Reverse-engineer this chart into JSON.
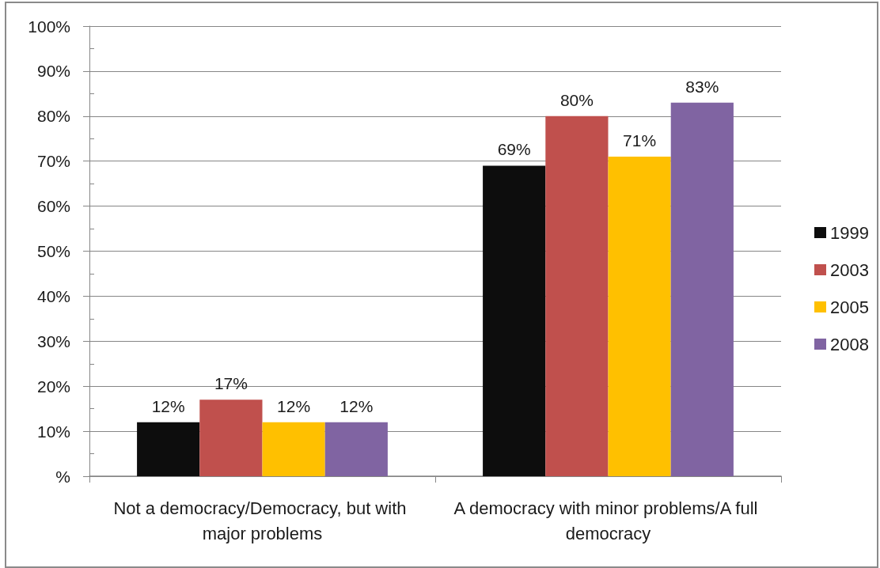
{
  "chart_data": {
    "type": "bar",
    "categories": [
      "Not a democracy/Democracy, but with major problems",
      "A democracy with minor problems/A full democracy"
    ],
    "series": [
      {
        "name": "1999",
        "color": "#0d0d0d",
        "values": [
          12,
          69
        ],
        "value_labels": [
          "12%",
          "69%"
        ]
      },
      {
        "name": "2003",
        "color": "#c0504d",
        "values": [
          17,
          80
        ],
        "value_labels": [
          "17%",
          "80%"
        ]
      },
      {
        "name": "2005",
        "color": "#ffc000",
        "values": [
          12,
          71
        ],
        "value_labels": [
          "12%",
          "71%"
        ]
      },
      {
        "name": "2008",
        "color": "#8064a2",
        "values": [
          12,
          83
        ],
        "value_labels": [
          "12%",
          "83%"
        ]
      }
    ],
    "ylim": [
      0,
      100
    ],
    "yticks": [
      {
        "value": 0,
        "label": "%"
      },
      {
        "value": 5,
        "label": null
      },
      {
        "value": 10,
        "label": "10%"
      },
      {
        "value": 15,
        "label": null
      },
      {
        "value": 20,
        "label": "20%"
      },
      {
        "value": 25,
        "label": null
      },
      {
        "value": 30,
        "label": "30%"
      },
      {
        "value": 35,
        "label": null
      },
      {
        "value": 40,
        "label": "40%"
      },
      {
        "value": 45,
        "label": null
      },
      {
        "value": 50,
        "label": "50%"
      },
      {
        "value": 55,
        "label": null
      },
      {
        "value": 60,
        "label": "60%"
      },
      {
        "value": 65,
        "label": null
      },
      {
        "value": 70,
        "label": "70%"
      },
      {
        "value": 75,
        "label": null
      },
      {
        "value": 80,
        "label": "80%"
      },
      {
        "value": 85,
        "label": null
      },
      {
        "value": 90,
        "label": "90%"
      },
      {
        "value": 95,
        "label": null
      },
      {
        "value": 100,
        "label": "100%"
      }
    ],
    "grid": "y",
    "legend": "right"
  }
}
